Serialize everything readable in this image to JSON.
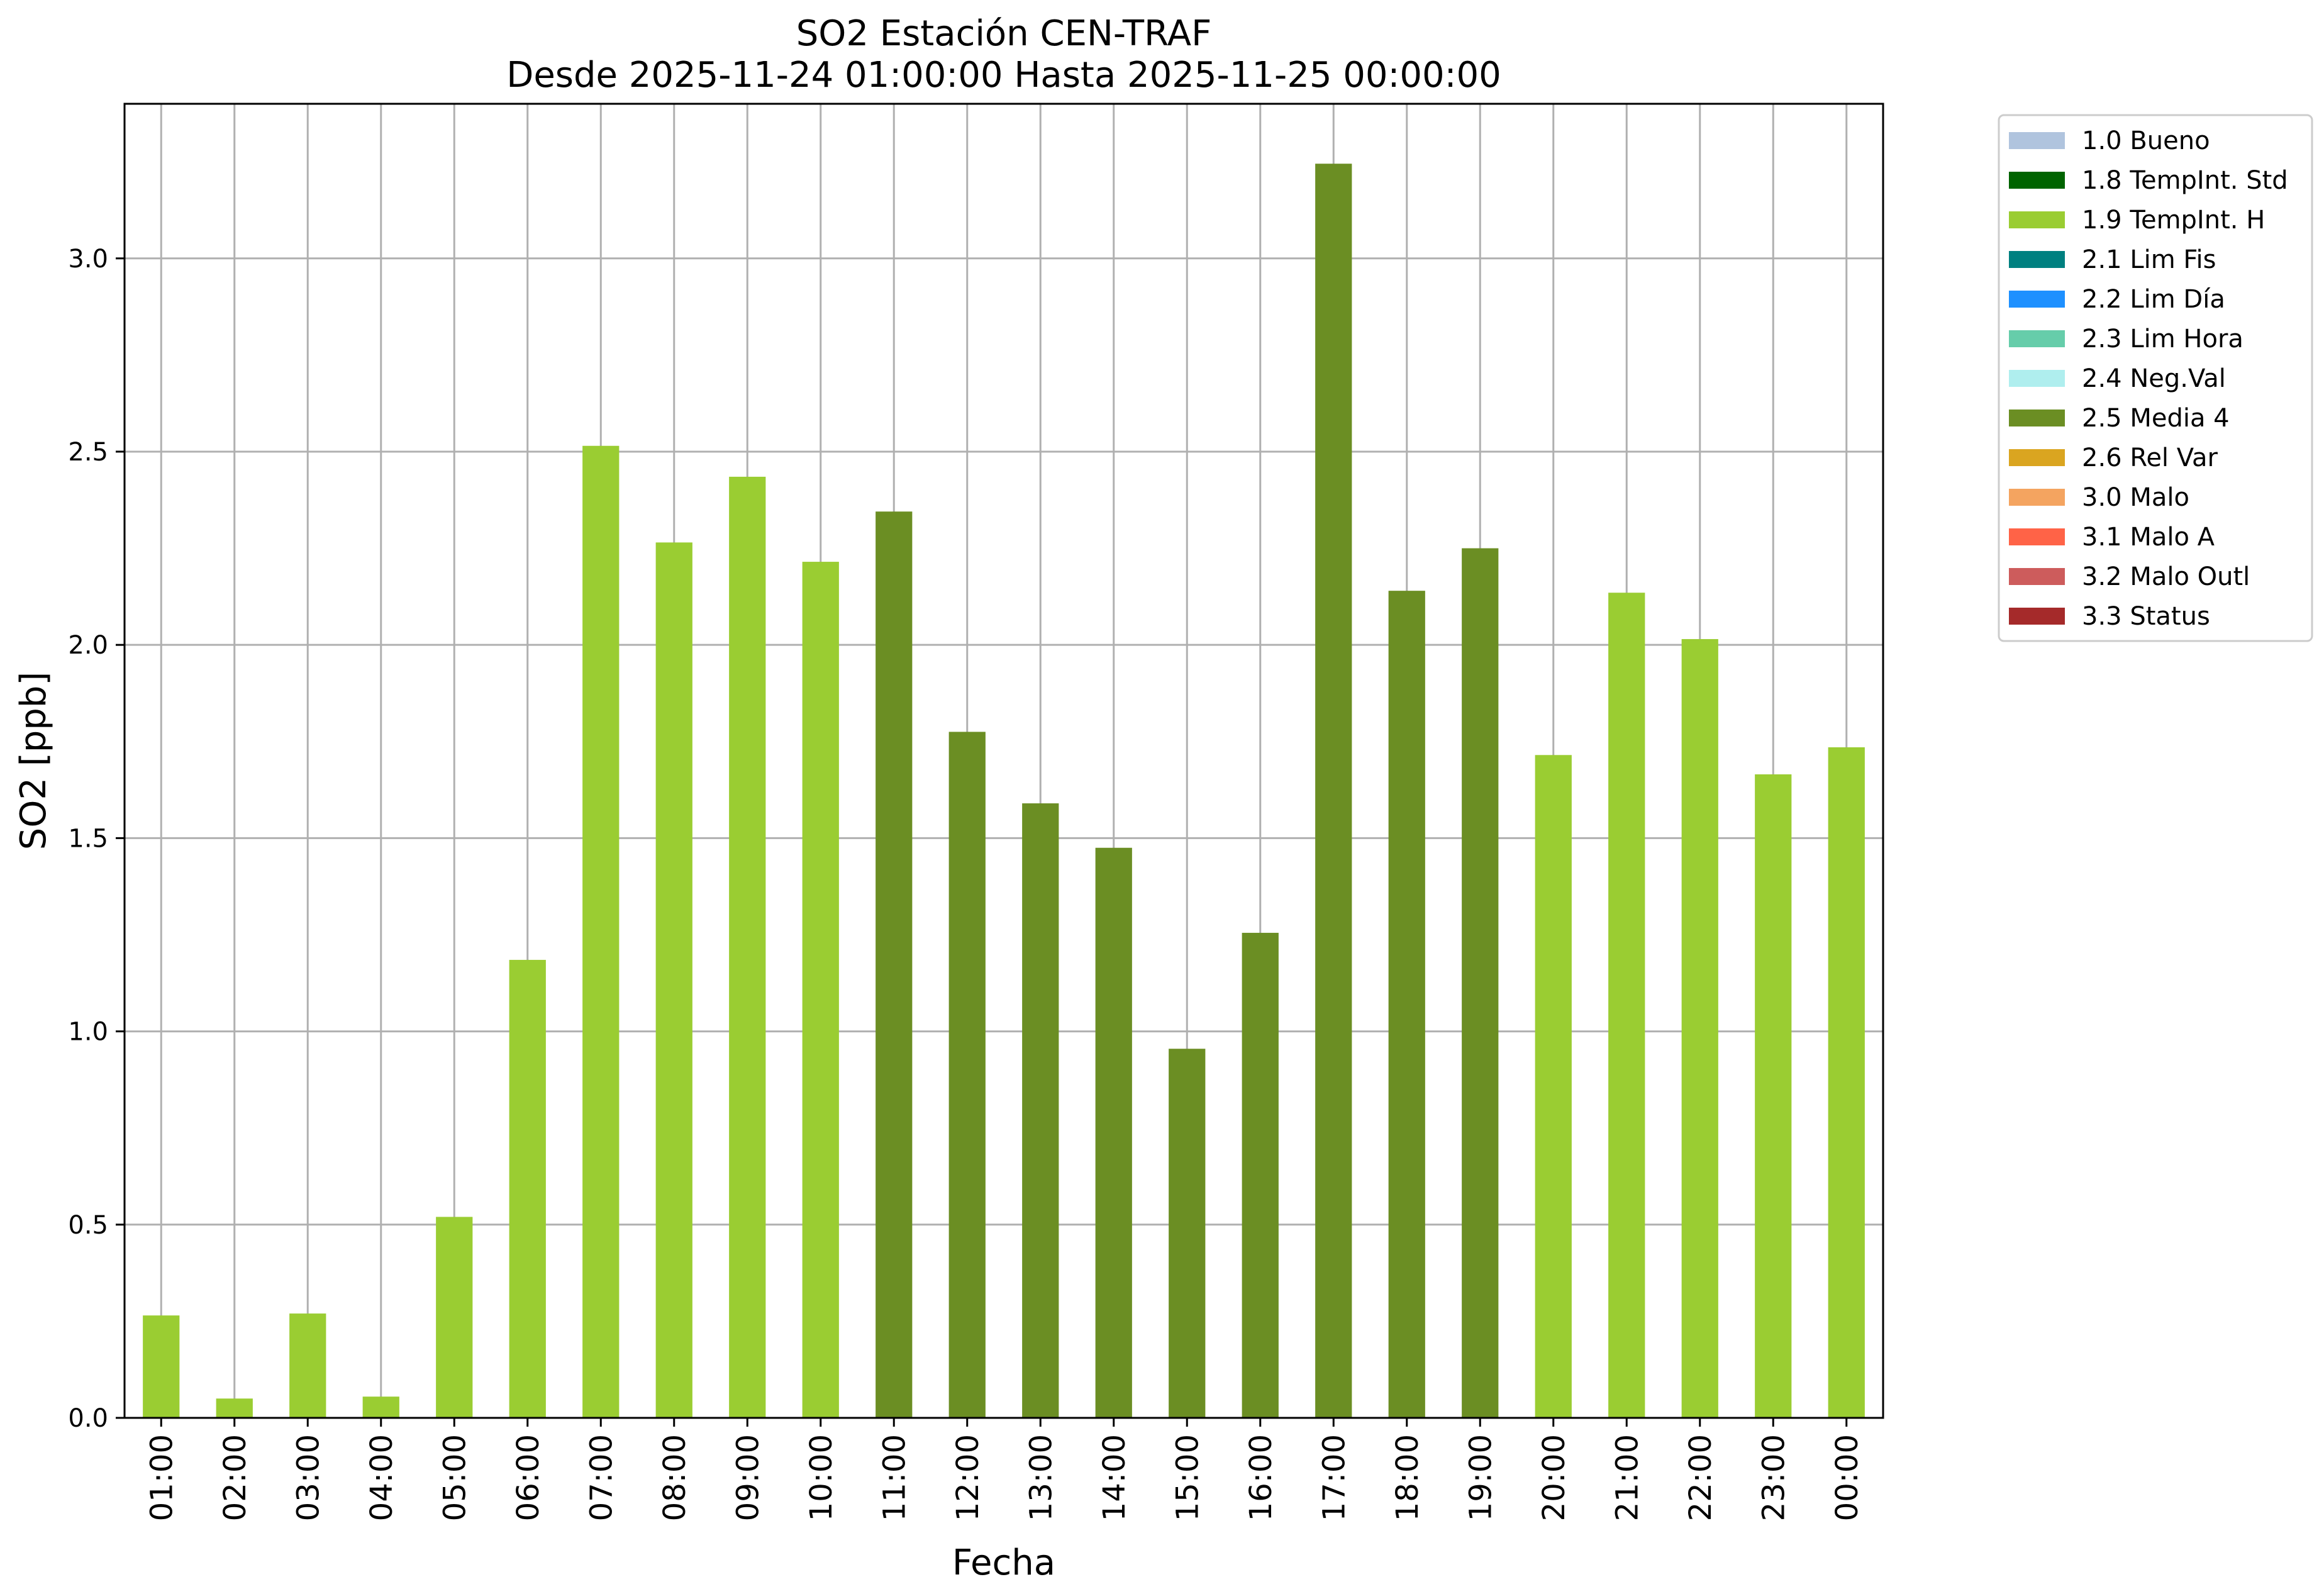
{
  "chart_data": {
    "type": "bar",
    "title": "SO2 Estación CEN-TRAF",
    "subtitle": "Desde 2025-11-24 01:00:00 Hasta 2025-11-25 00:00:00",
    "xlabel": "Fecha",
    "ylabel": "SO2 [ppb]",
    "ylim": [
      0,
      3.4
    ],
    "yticks": [
      "0.0",
      "0.5",
      "1.0",
      "1.5",
      "2.0",
      "2.5",
      "3.0"
    ],
    "grid": true,
    "legend_position": "outside-right-top",
    "categories": [
      "01:00",
      "02:00",
      "03:00",
      "04:00",
      "05:00",
      "06:00",
      "07:00",
      "08:00",
      "09:00",
      "10:00",
      "11:00",
      "12:00",
      "13:00",
      "14:00",
      "15:00",
      "16:00",
      "17:00",
      "18:00",
      "19:00",
      "20:00",
      "21:00",
      "22:00",
      "23:00",
      "00:00"
    ],
    "values": [
      0.265,
      0.05,
      0.27,
      0.055,
      0.52,
      1.185,
      2.515,
      2.265,
      2.435,
      2.215,
      2.345,
      1.775,
      1.59,
      1.475,
      0.955,
      1.255,
      3.245,
      2.14,
      2.25,
      1.715,
      2.135,
      2.015,
      1.665,
      1.735
    ],
    "flags": [
      "1.9 TempInt. H",
      "1.9 TempInt. H",
      "1.9 TempInt. H",
      "1.9 TempInt. H",
      "1.9 TempInt. H",
      "1.9 TempInt. H",
      "1.9 TempInt. H",
      "1.9 TempInt. H",
      "1.9 TempInt. H",
      "1.9 TempInt. H",
      "2.5 Media 4",
      "2.5 Media 4",
      "2.5 Media 4",
      "2.5 Media 4",
      "2.5 Media 4",
      "2.5 Media 4",
      "2.5 Media 4",
      "2.5 Media 4",
      "2.5 Media 4",
      "1.9 TempInt. H",
      "1.9 TempInt. H",
      "1.9 TempInt. H",
      "1.9 TempInt. H",
      "1.9 TempInt. H"
    ],
    "legend": [
      {
        "label": "1.0 Bueno",
        "color": "#b0c4de"
      },
      {
        "label": "1.8 TempInt. Std",
        "color": "#006400"
      },
      {
        "label": "1.9 TempInt. H",
        "color": "#9acd32"
      },
      {
        "label": "2.1 Lim Fis",
        "color": "#008080"
      },
      {
        "label": "2.2 Lim Día",
        "color": "#1e90ff"
      },
      {
        "label": "2.3 Lim Hora",
        "color": "#66cdaa"
      },
      {
        "label": "2.4 Neg.Val",
        "color": "#afeeee"
      },
      {
        "label": "2.5 Media 4",
        "color": "#6b8e23"
      },
      {
        "label": "2.6 Rel Var",
        "color": "#daa520"
      },
      {
        "label": "3.0 Malo",
        "color": "#f4a460"
      },
      {
        "label": "3.1 Malo A",
        "color": "#ff6347"
      },
      {
        "label": "3.2 Malo Outl",
        "color": "#cd5c5c"
      },
      {
        "label": "3.3 Status",
        "color": "#a52a2a"
      }
    ]
  }
}
